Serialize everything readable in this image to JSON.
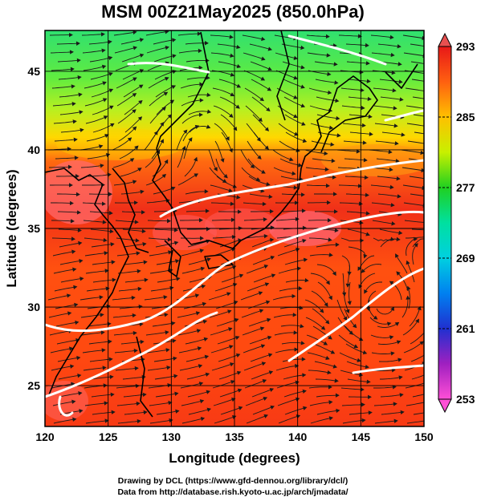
{
  "title": "MSM 00Z21May2025 (850.0hPa)",
  "credits": {
    "line1": "Drawing by DCL (https://www.gfd-dennou.org/library/dcl/)",
    "line2": "Data from http://database.rish.kyoto-u.ac.jp/arch/jmadata/"
  },
  "chart_data": {
    "type": "heatmap",
    "xlabel": "Longitude (degrees)",
    "ylabel": "Latitude  (degrees)",
    "xlim": [
      120,
      150
    ],
    "ylim": [
      22.4,
      47.6
    ],
    "x_ticks": [
      120,
      125,
      130,
      135,
      140,
      145,
      150
    ],
    "y_ticks": [
      25,
      30,
      35,
      40,
      45
    ],
    "grid": true,
    "colorbar": {
      "placement": "right",
      "range": [
        253,
        293
      ],
      "tick_labels": [
        293,
        285,
        277,
        269,
        261,
        253
      ],
      "colors_low_to_high": [
        "#ff4fd6",
        "#a020c0",
        "#2030d0",
        "#00b0f0",
        "#00e0c0",
        "#20d020",
        "#b0f000",
        "#ffe000",
        "#ff9000",
        "#ff3010",
        "#e81818"
      ]
    },
    "overlays": [
      "streamlines",
      "coastlines",
      "white contour lines"
    ]
  }
}
